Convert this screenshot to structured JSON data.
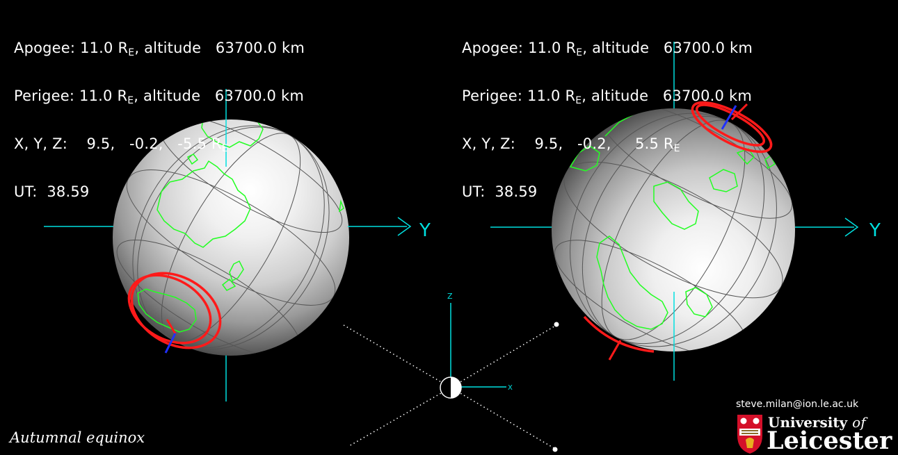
{
  "left_panel": {
    "apogee": [
      "Apogee: 11.0 R",
      "E",
      ", altitude   63700.0 km"
    ],
    "perigee": [
      "Perigee: 11.0 R",
      "E",
      ", altitude   63700.0 km"
    ],
    "xyz": [
      "X, Y, Z:    9.5,   -0.2,   -5.5 R",
      "E",
      ""
    ],
    "ut": "UT:  38.59"
  },
  "right_panel": {
    "apogee": [
      "Apogee: 11.0 R",
      "E",
      ", altitude   63700.0 km"
    ],
    "perigee": [
      "Perigee: 11.0 R",
      "E",
      ", altitude   63700.0 km"
    ],
    "xyz": [
      "X, Y, Z:    9.5,   -0.2,     5.5 R",
      "E",
      ""
    ],
    "ut": "UT:  38.59"
  },
  "axis_labels": {
    "y_left": "Y",
    "y_right": "Y",
    "z_small": "Z",
    "x_small": "X"
  },
  "caption": "Autumnal equinox",
  "email": "steve.milan@ion.le.ac.uk",
  "logo": {
    "line1_a": "University ",
    "line1_b": "of",
    "line2": "Leicester"
  },
  "colors": {
    "axis": "#00e0e0",
    "coast": "#22ff22",
    "oval": "#ff1a1a",
    "field": "#2030ff",
    "background": "#000000"
  },
  "icon_names": [
    "globe-left",
    "globe-right",
    "day-night-indicator-icon",
    "university-crest-icon"
  ]
}
